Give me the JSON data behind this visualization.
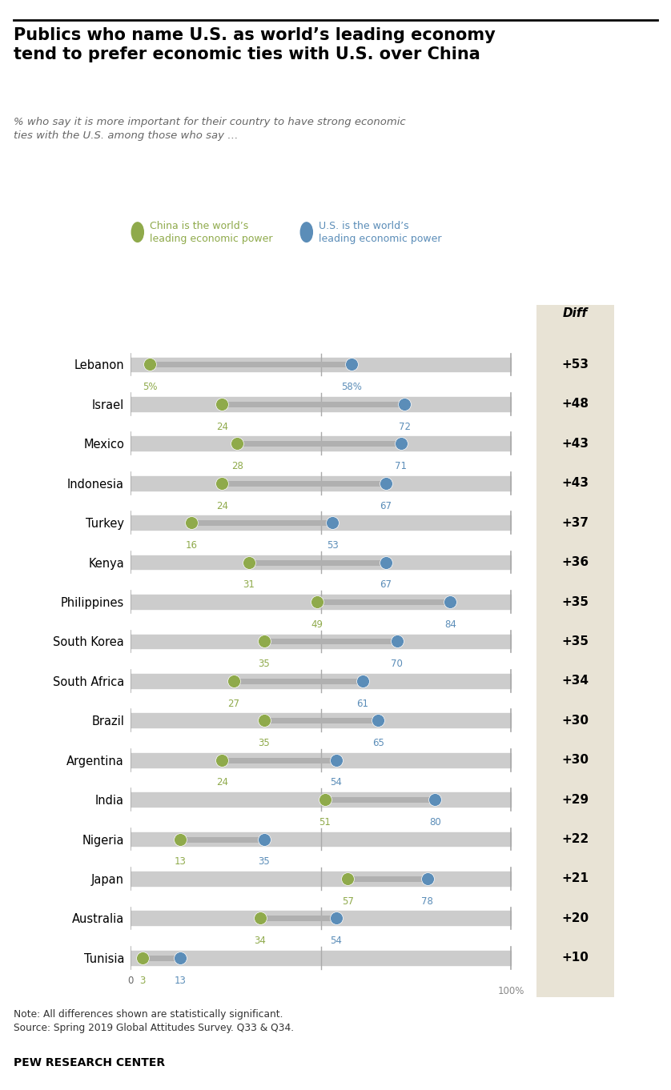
{
  "title": "Publics who name U.S. as world’s leading economy\ntend to prefer economic ties with U.S. over China",
  "subtitle": "% who say it is more important for their country to have strong economic\nties with the U.S. among those who say …",
  "legend_china": "China is the world’s\nleading economic power",
  "legend_us": "U.S. is the world’s\nleading economic power",
  "diff_label": "Diff",
  "countries": [
    "Lebanon",
    "Israel",
    "Mexico",
    "Indonesia",
    "Turkey",
    "Kenya",
    "Philippines",
    "South Korea",
    "South Africa",
    "Brazil",
    "Argentina",
    "India",
    "Nigeria",
    "Japan",
    "Australia",
    "Tunisia"
  ],
  "china_vals": [
    5,
    24,
    28,
    24,
    16,
    31,
    49,
    35,
    27,
    35,
    24,
    51,
    13,
    57,
    34,
    3
  ],
  "us_vals": [
    58,
    72,
    71,
    67,
    53,
    67,
    84,
    70,
    61,
    65,
    54,
    80,
    35,
    78,
    54,
    13
  ],
  "diffs": [
    "+53",
    "+48",
    "+43",
    "+43",
    "+37",
    "+36",
    "+35",
    "+35",
    "+34",
    "+30",
    "+30",
    "+29",
    "+22",
    "+21",
    "+20",
    "+10"
  ],
  "china_color": "#8faa4b",
  "us_color": "#5b8db8",
  "track_color": "#cccccc",
  "connector_color": "#b0b0b0",
  "diff_bg": "#e8e3d5",
  "note": "Note: All differences shown are statistically significant.\nSource: Spring 2019 Global Attitudes Survey. Q33 & Q34.",
  "source_label": "PEW RESEARCH CENTER",
  "xmax": 100
}
